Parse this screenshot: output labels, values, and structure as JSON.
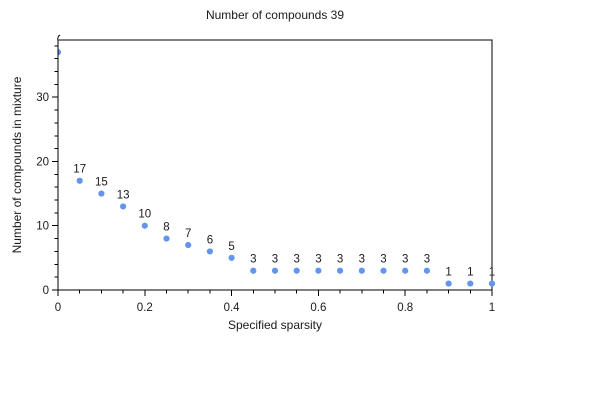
{
  "chart_data": {
    "type": "scatter",
    "title": "Number of compounds 39",
    "xlabel": "Specified sparsity",
    "ylabel": "Number of compounds in mixture",
    "x": [
      0,
      0.05,
      0.1,
      0.15,
      0.2,
      0.25,
      0.3,
      0.35,
      0.4,
      0.45,
      0.5,
      0.55,
      0.6,
      0.65,
      0.7,
      0.75,
      0.8,
      0.85,
      0.9,
      0.95,
      1
    ],
    "y": [
      37,
      17,
      15,
      13,
      10,
      8,
      7,
      6,
      5,
      3,
      3,
      3,
      3,
      3,
      3,
      3,
      3,
      3,
      1,
      1,
      1
    ],
    "point_labels": [
      "",
      "17",
      "15",
      "13",
      "10",
      "8",
      "7",
      "6",
      "5",
      "3",
      "3",
      "3",
      "3",
      "3",
      "3",
      "3",
      "3",
      "3",
      "1",
      "1",
      "1"
    ],
    "xlim": [
      0,
      1
    ],
    "ylim": [
      0,
      38.9
    ],
    "x_tick_values": [
      0,
      0.2,
      0.4,
      0.6,
      0.8,
      1
    ],
    "x_tick_labels": [
      "0",
      "0.2",
      "0.4",
      "0.6",
      "0.8",
      "1"
    ],
    "x_minor_step": 0.05,
    "y_tick_values": [
      0,
      10,
      20,
      30
    ],
    "y_tick_labels": [
      "0",
      "10",
      "20",
      "30"
    ],
    "y_minor_step": 2,
    "grid": false,
    "legend": null,
    "marker_color": "#6495ED",
    "axis_color": "#000000",
    "text_color": "#1a1a1a",
    "background": "#ffffff"
  }
}
